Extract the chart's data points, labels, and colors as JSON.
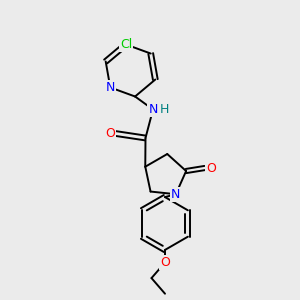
{
  "background_color": "#ebebeb",
  "bond_color": "#000000",
  "atom_colors": {
    "N": "#0000ff",
    "O": "#ff0000",
    "Cl": "#00cc00",
    "NH": "#008080",
    "C": "#000000"
  },
  "lw": 1.4,
  "figsize": [
    3.0,
    3.0
  ],
  "dpi": 100
}
